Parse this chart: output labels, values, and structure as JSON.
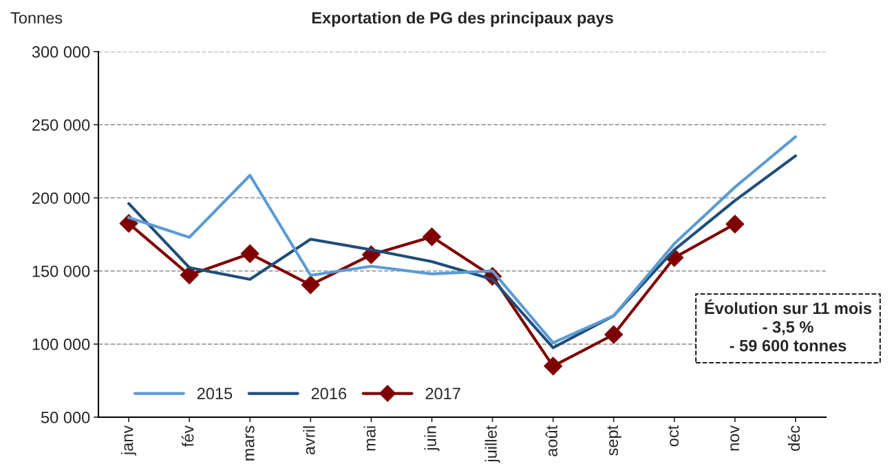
{
  "chart_data": {
    "type": "line",
    "title": "Exportation de PG des principaux pays",
    "ylabel": "Tonnes",
    "categories": [
      "janv",
      "fév",
      "mars",
      "avril",
      "mai",
      "juin",
      "juillet",
      "août",
      "sept",
      "oct",
      "nov",
      "déc"
    ],
    "series": [
      {
        "name": "2015",
        "color": "#5b9bd5",
        "marker": "none",
        "values": [
          186500,
          173000,
          215400,
          147000,
          153200,
          148000,
          150000,
          100900,
          119400,
          168600,
          207300,
          241800
        ]
      },
      {
        "name": "2016",
        "color": "#1f4e79",
        "marker": "none",
        "values": [
          196100,
          152300,
          144300,
          171700,
          164500,
          156400,
          144300,
          97500,
          119400,
          164500,
          198100,
          228700
        ]
      },
      {
        "name": "2017",
        "color": "#7f0000",
        "marker": "diamond",
        "values": [
          182500,
          147200,
          161800,
          140500,
          161100,
          173400,
          146300,
          84900,
          106500,
          159100,
          182100,
          null
        ]
      }
    ],
    "ylim": [
      50000,
      300000
    ],
    "yticks": [
      {
        "value": 50000,
        "label": "50 000"
      },
      {
        "value": 100000,
        "label": "100 000"
      },
      {
        "value": 150000,
        "label": "150 000"
      },
      {
        "value": 200000,
        "label": "200 000"
      },
      {
        "value": 250000,
        "label": "250 000"
      },
      {
        "value": 300000,
        "label": "300 000"
      }
    ],
    "grid": "y",
    "legend": "bottom left",
    "annotations": [
      "Évolution sur 11 mois\n- 3,5 %\n- 59 600 tonnes"
    ]
  }
}
